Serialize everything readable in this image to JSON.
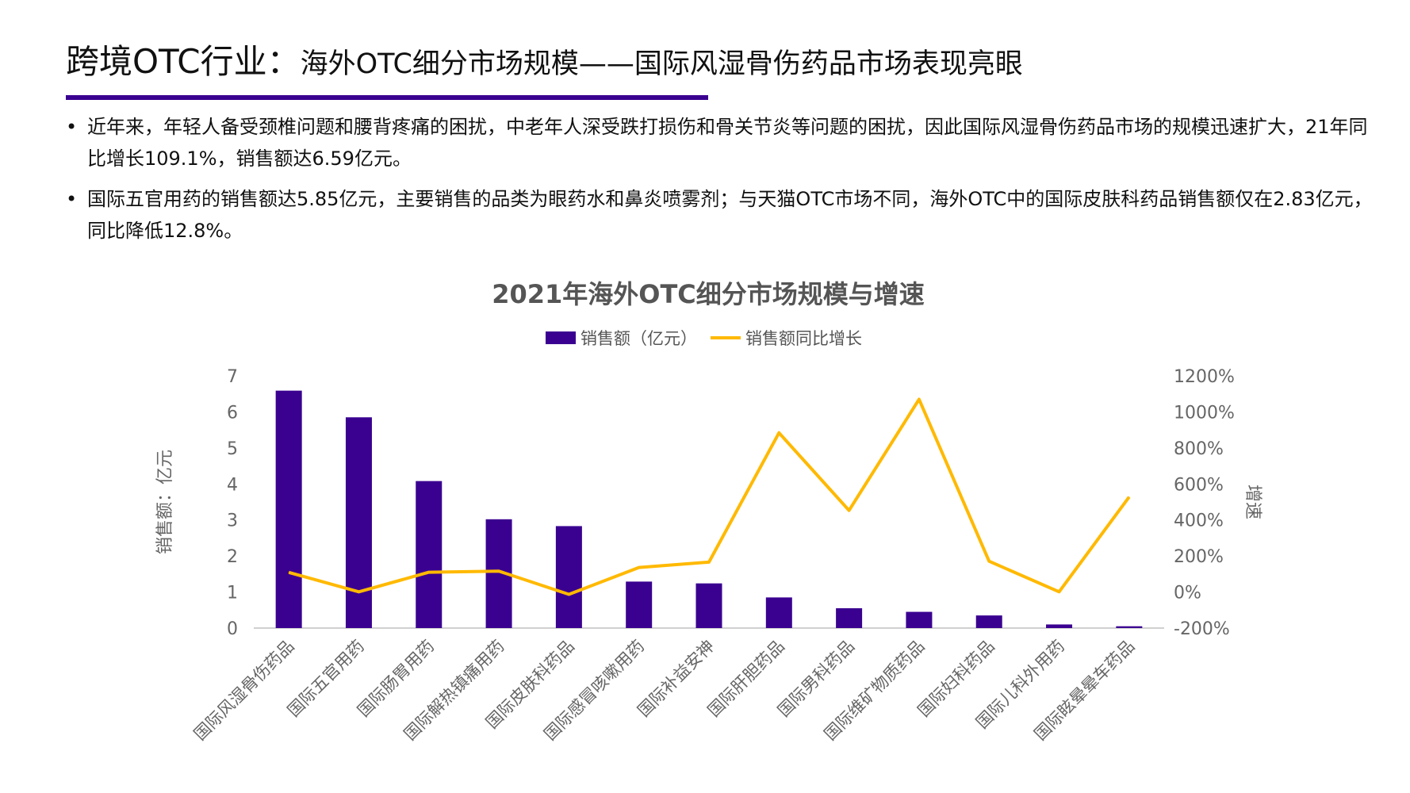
{
  "header": {
    "title_main": "跨境OTC行业：",
    "title_sub": "海外OTC细分市场规模——国际风湿骨伤药品市场表现亮眼"
  },
  "bullets": [
    "近年来，年轻人备受颈椎问题和腰背疼痛的困扰，中老年人深受跌打损伤和骨关节炎等问题的困扰，因此国际风湿骨伤药品市场的规模迅速扩大，21年同比增长109.1%，销售额达6.59亿元。",
    "国际五官用药的销售额达5.85亿元，主要销售的品类为眼药水和鼻炎喷雾剂；与天猫OTC市场不同，海外OTC中的国际皮肤科药品销售额仅在2.83亿元，同比降低12.8%。"
  ],
  "chart_data": {
    "type": "bar+line",
    "title": "2021年海外OTC细分市场规模与增速",
    "ylabel": "销售额：亿元",
    "y2label": "增速",
    "ylim": [
      0,
      7
    ],
    "y2lim": [
      -200,
      1200
    ],
    "yticks": [
      "0",
      "1",
      "2",
      "3",
      "4",
      "5",
      "6",
      "7"
    ],
    "y2ticks": [
      "-200%",
      "0%",
      "200%",
      "400%",
      "600%",
      "800%",
      "1000%",
      "1200%"
    ],
    "legend_position": "top",
    "grid": false,
    "categories": [
      "国际风湿骨伤药品",
      "国际五官用药",
      "国际肠胃用药",
      "国际解热镇痛用药",
      "国际皮肤科药品",
      "国际感冒咳嗽用药",
      "国际补益安神",
      "国际肝胆药品",
      "国际男科药品",
      "国际维矿物质药品",
      "国际妇科药品",
      "国际儿科外用药",
      "国际眩晕晕车药品"
    ],
    "series": [
      {
        "name": "销售额（亿元）",
        "type": "bar",
        "axis": "left",
        "color": "#3a0090",
        "values": [
          6.59,
          5.85,
          4.08,
          3.02,
          2.83,
          1.29,
          1.24,
          0.85,
          0.55,
          0.45,
          0.35,
          0.1,
          0.05
        ]
      },
      {
        "name": "销售额同比增长",
        "type": "line",
        "axis": "right",
        "color": "#ffb900",
        "values": [
          109.1,
          1,
          110,
          116,
          -12.8,
          136,
          166,
          884,
          453,
          1070,
          171,
          1,
          528
        ]
      }
    ]
  }
}
